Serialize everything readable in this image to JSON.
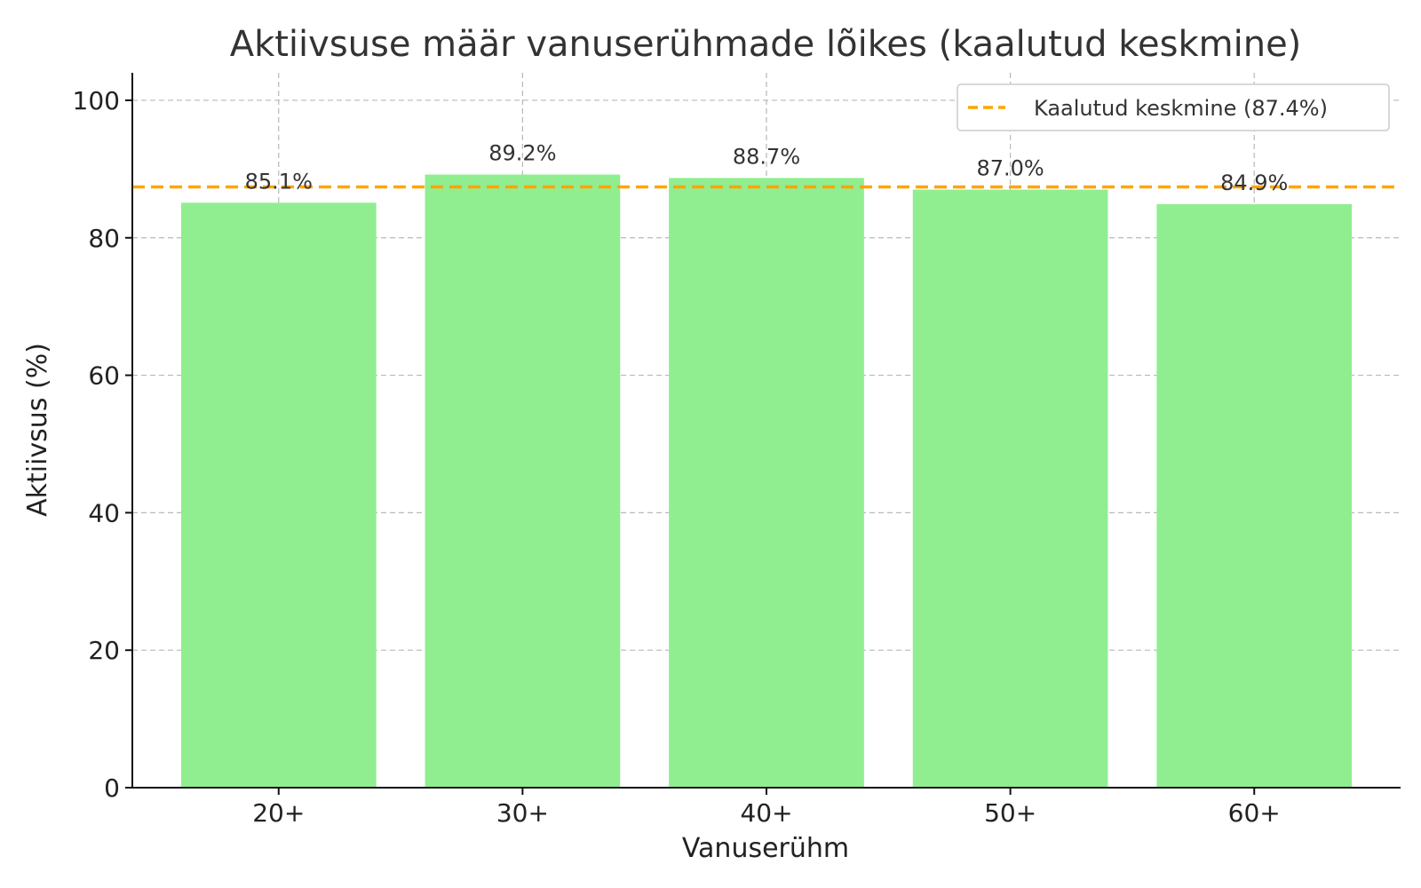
{
  "chart_data": {
    "type": "bar",
    "title": "Aktiivsuse määr vanuserühmade lõikes (kaalutud keskmine)",
    "xlabel": "Vanuserühm",
    "ylabel": "Aktiivsus (%)",
    "categories": [
      "20+",
      "30+",
      "40+",
      "50+",
      "60+"
    ],
    "values": [
      85.1,
      89.2,
      88.7,
      87.0,
      84.9
    ],
    "data_labels": [
      "85.1%",
      "89.2%",
      "88.7%",
      "87.0%",
      "84.9%"
    ],
    "ylim": [
      0,
      104
    ],
    "yticks": [
      0,
      20,
      40,
      60,
      80,
      100
    ],
    "reference_line": {
      "value": 87.4,
      "label": "Kaalutud keskmine (87.4%)",
      "style": "dashed"
    },
    "grid": true,
    "legend_position": "top-right",
    "colors": {
      "bar": "#90EE90",
      "reference_line": "#FFA500"
    }
  }
}
